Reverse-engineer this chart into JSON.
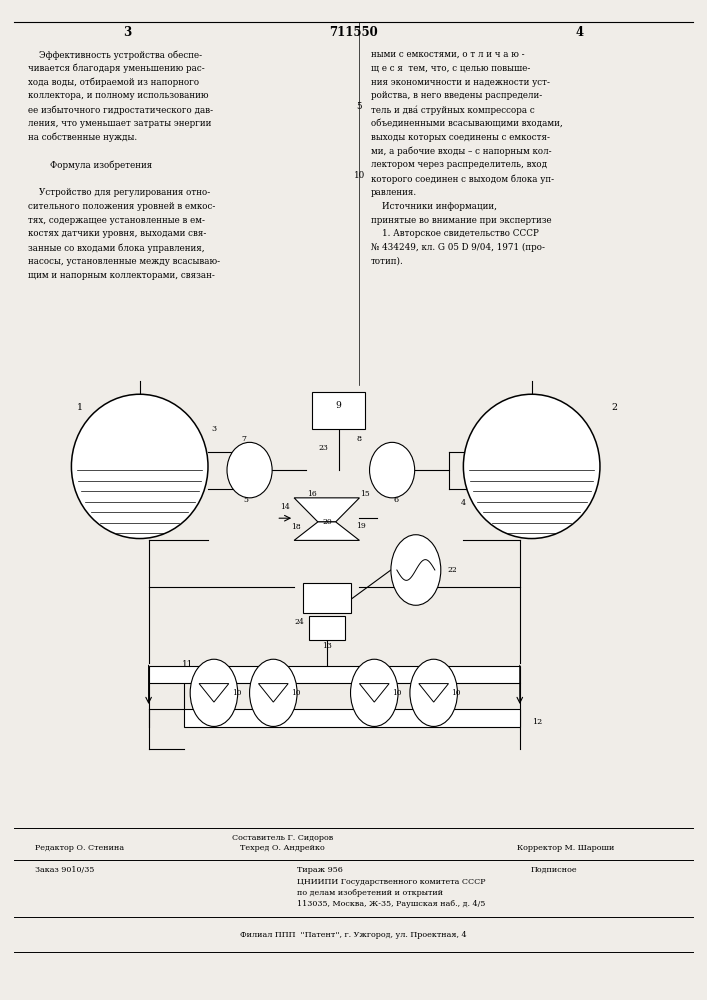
{
  "page_width": 7.07,
  "page_height": 10.0,
  "bg_color": "#f0ede8",
  "text_fontsize": 6.3,
  "header_fontsize": 8.5,
  "header_page_left": "3",
  "header_patent": "711550",
  "header_page_right": "4",
  "left_col_text": [
    "    Эффективность устройства обеспе-",
    "чивается благодаря уменьшению рас-",
    "хода воды, отбираемой из напорного",
    "коллектора, и полному использованию",
    "ее избыточного гидростатического дав-",
    "ления, что уменьшает затраты энергии",
    "на собственные нужды.",
    "",
    "        Формула изобретения",
    "",
    "    Устройство для регулирования отно-",
    "сительного положения уровней в емкос-",
    "тях, содержащее установленные в ем-",
    "костях датчики уровня, выходами свя-",
    "занные со входами блока управления,",
    "насосы, установленные между всасываю-",
    "щим и напорным коллекторами, связан-"
  ],
  "right_col_text": [
    "ными с емкостями, о т л и ч а ю -",
    "щ е с я  тем, что, с целью повыше-",
    "ния экономичности и надежности уст-",
    "ройства, в него введены распредели-",
    "тель и два́ струйных компрессора с",
    "объединенными всасывающими входами,",
    "выходы которых соединены с емкостя-",
    "ми, а рабочие входы – с напорным кол-",
    "лектором через распределитель, вход",
    "которого соединен с выходом блока уп-",
    "равления.",
    "    Источники информации,",
    "принятые во внимание при экспертизе",
    "    1. Авторское свидетельство СССР",
    "№ 434249, кл. G 05 D 9/04, 1971 (про-",
    "тотип)."
  ],
  "line_number_5": "5",
  "line_number_10": "10",
  "footer_editor_label": "Редактор О. Стенина",
  "footer_composer_label": "Составитель Г. Сидоров",
  "footer_tech_label": "Техред О. Андрейко",
  "footer_corrector_label": "Корректор М. Шароши",
  "footer_order": "Заказ 9010/35",
  "footer_circulation": "Тираж 956",
  "footer_subscription": "Подписное",
  "footer_org": "ЦНИИПИ Государственного комитета СССР",
  "footer_dept": "по делам изобретений и открытий",
  "footer_address": "113035, Москва, Ж-35, Раушская наб., д. 4/5",
  "footer_branch": "Филиал ППП  ''Патент'', г. Ужгород, ул. Проектная, 4"
}
